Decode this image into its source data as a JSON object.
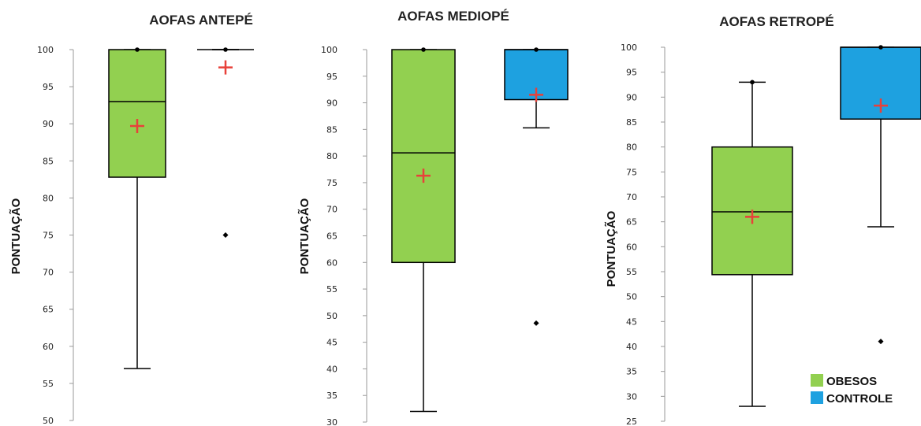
{
  "chart_data": [
    {
      "type": "box",
      "title": "AOFAS ANTEPÉ",
      "ylabel": "PONTUAÇÃO",
      "ylim": [
        50,
        100
      ],
      "yticks": [
        50,
        55,
        60,
        65,
        70,
        75,
        80,
        85,
        90,
        95,
        100
      ],
      "series": [
        {
          "name": "OBESOS",
          "min": 57,
          "q1": 82.8,
          "median": 93,
          "q3": 100,
          "max": 100,
          "mean": 89.7,
          "outliers": []
        },
        {
          "name": "CONTROLE",
          "min": 100,
          "q1": 100,
          "median": 100,
          "q3": 100,
          "max": 100,
          "mean": 97.6,
          "outliers": [
            75
          ]
        }
      ]
    },
    {
      "type": "box",
      "title": "AOFAS MEDIOPÉ",
      "ylabel": "PONTUAÇÃO",
      "ylim": [
        30,
        100
      ],
      "yticks": [
        30,
        35,
        40,
        45,
        50,
        55,
        60,
        65,
        70,
        75,
        80,
        85,
        90,
        95,
        100
      ],
      "series": [
        {
          "name": "OBESOS",
          "min": 32,
          "q1": 60,
          "median": 80.6,
          "q3": 100,
          "max": 100,
          "mean": 76.3,
          "outliers": []
        },
        {
          "name": "CONTROLE",
          "min": 85.3,
          "q1": 90.6,
          "median": 100,
          "q3": 100,
          "max": 100,
          "mean": 91.5,
          "outliers": [
            48.6
          ]
        }
      ]
    },
    {
      "type": "box",
      "title": "AOFAS RETROPÉ",
      "ylabel": "PONTUAÇÃO",
      "ylim": [
        25,
        100
      ],
      "yticks": [
        25,
        30,
        35,
        40,
        45,
        50,
        55,
        60,
        65,
        70,
        75,
        80,
        85,
        90,
        95,
        100
      ],
      "series": [
        {
          "name": "OBESOS",
          "min": 28,
          "q1": 54.4,
          "median": 67,
          "q3": 80,
          "max": 93,
          "mean": 66,
          "outliers": []
        },
        {
          "name": "CONTROLE",
          "min": 64,
          "q1": 85.6,
          "median": 100,
          "q3": 100,
          "max": 100,
          "mean": 88.3,
          "outliers": [
            41
          ]
        }
      ]
    }
  ],
  "legend": {
    "placement": "bottom-right",
    "items": [
      {
        "label": "OBESOS",
        "color": "#92d050"
      },
      {
        "label": "CONTROLE",
        "color": "#1ea1e0"
      }
    ]
  },
  "colors": {
    "obesos": "#92d050",
    "controle": "#1ea1e0",
    "mean_marker": "#e8413a",
    "line": "#000000"
  }
}
